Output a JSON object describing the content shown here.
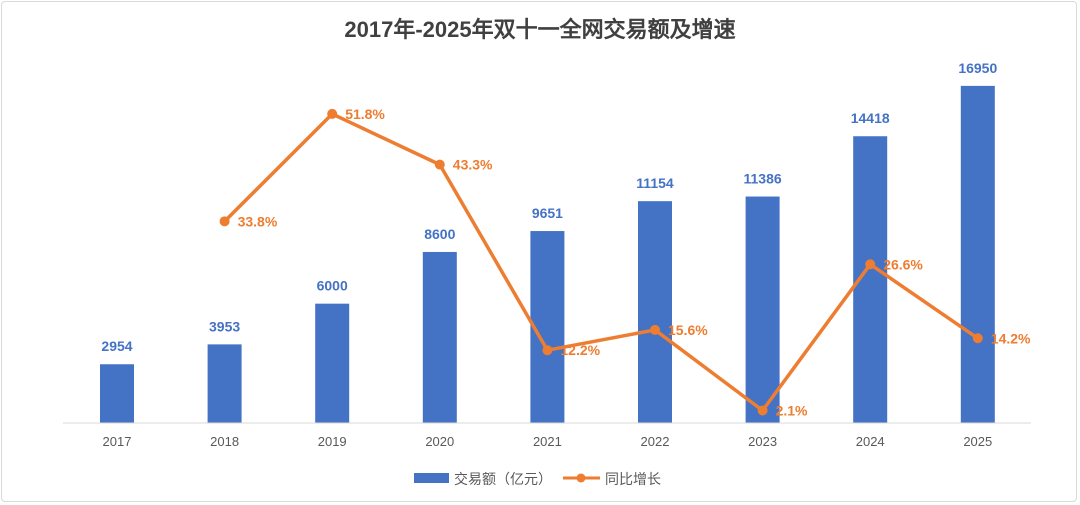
{
  "chart_data": {
    "type": "bar+line",
    "title": "2017年-2025年双十一全网交易额及增速",
    "categories": [
      "2017",
      "2018",
      "2019",
      "2020",
      "2021",
      "2022",
      "2023",
      "2024",
      "2025"
    ],
    "series": [
      {
        "name": "交易额（亿元）",
        "type": "bar",
        "axis": "primary",
        "color": "#4472C4",
        "values": [
          2954,
          3953,
          6000,
          8600,
          9651,
          11154,
          11386,
          14418,
          16950
        ],
        "labels": [
          "2954",
          "3953",
          "6000",
          "8600",
          "9651",
          "11154",
          "11386",
          "14418",
          "16950"
        ]
      },
      {
        "name": "同比增长",
        "type": "line",
        "axis": "secondary",
        "color": "#ED7D31",
        "values": [
          null,
          33.8,
          51.8,
          43.3,
          12.2,
          15.6,
          2.1,
          26.6,
          14.2
        ],
        "labels": [
          "",
          "33.8%",
          "51.8%",
          "43.3%",
          "12.2%",
          "15.6%",
          "2.1%",
          "26.6%",
          "14.2%"
        ]
      }
    ],
    "ylim": [
      0,
      18000
    ],
    "y2lim": [
      0,
      60
    ],
    "grid": false,
    "legend_position": "bottom"
  }
}
